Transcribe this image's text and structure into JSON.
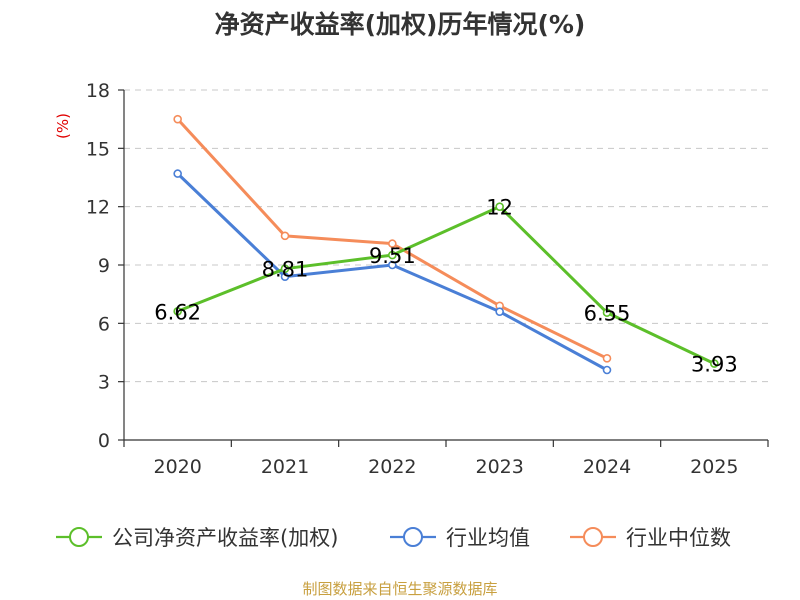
{
  "chart_data": {
    "type": "line",
    "title": "净资产收益率(加权)历年情况(%)",
    "ylabel": "(%)",
    "xlabel": "",
    "categories": [
      "2020",
      "2021",
      "2022",
      "2023",
      "2024",
      "2025"
    ],
    "yticks": [
      "0",
      "3",
      "6",
      "9",
      "12",
      "15",
      "18"
    ],
    "ylim": [
      0,
      18
    ],
    "grid": true,
    "legend_position": "bottom",
    "series": [
      {
        "name": "公司净资产收益率(加权)",
        "color": "#5cbf2a",
        "values": [
          6.62,
          8.81,
          9.51,
          12,
          6.55,
          3.93
        ],
        "labels": [
          "6.62",
          "8.81",
          "9.51",
          "12",
          "6.55",
          "3.93"
        ]
      },
      {
        "name": "行业均值",
        "color": "#4a7fd6",
        "values": [
          13.7,
          8.4,
          9.0,
          6.6,
          3.6,
          null
        ]
      },
      {
        "name": "行业中位数",
        "color": "#f58c5a",
        "values": [
          16.5,
          10.5,
          10.1,
          6.9,
          4.2,
          null
        ]
      }
    ],
    "source": "制图数据来自恒生聚源数据库"
  }
}
